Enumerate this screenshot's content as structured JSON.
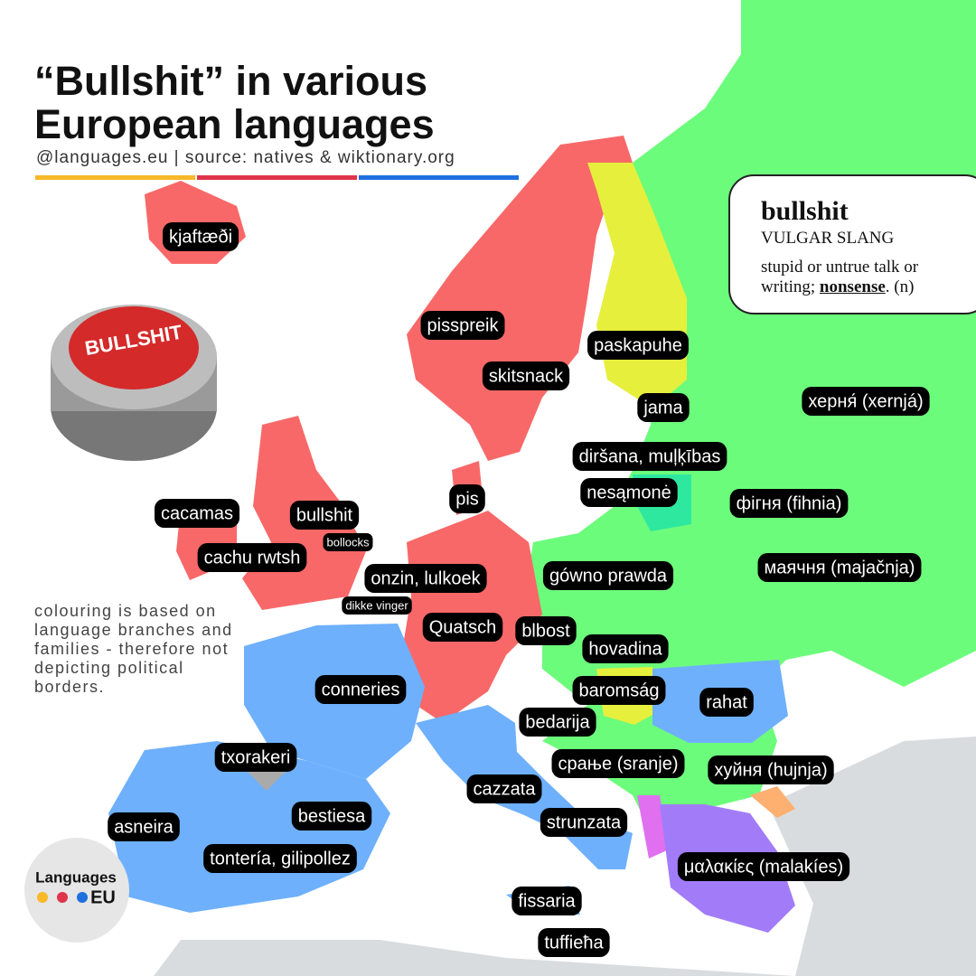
{
  "header": {
    "title_line1": "“Bullshit” in various",
    "title_line2": "European languages",
    "subtitle": "@languages.eu | source: natives & wiktionary.org"
  },
  "definition": {
    "word": "bullshit",
    "register": "VULGAR SLANG",
    "text_before": "stupid or untrue talk or writing; ",
    "link": "nonsense",
    "text_after": ". (n)"
  },
  "button_label": "BULLSHIT",
  "note": "colouring is based on language branches and families - therefore not depicting political borders.",
  "logo": {
    "line1": "Languages",
    "line2": "EU"
  },
  "labels": [
    "kjaftæði",
    "pisspreik",
    "paskapuhe",
    "skitsnack",
    "jama",
    "херня́ (xernjá)",
    "diršana, muļķības",
    "nesąmonė",
    "pis",
    "фігня (fihnia)",
    "cacamas",
    "bullshit",
    "bollocks",
    "cachu rwtsh",
    "onzin, lulkoek",
    "gówno prawda",
    "маячня (majačnja)",
    "dikke vinger",
    "Quatsch",
    "blbost",
    "hovadina",
    "baromság",
    "conneries",
    "rahat",
    "bedarija",
    "txorakeri",
    "срање (sranje)",
    "хуйня (hujnja)",
    "cazzata",
    "bestiesa",
    "strunzata",
    "asneira",
    "tontería, gilipollez",
    "μαλακίες (malakíes)",
    "fissaria",
    "tuffieħa"
  ]
}
